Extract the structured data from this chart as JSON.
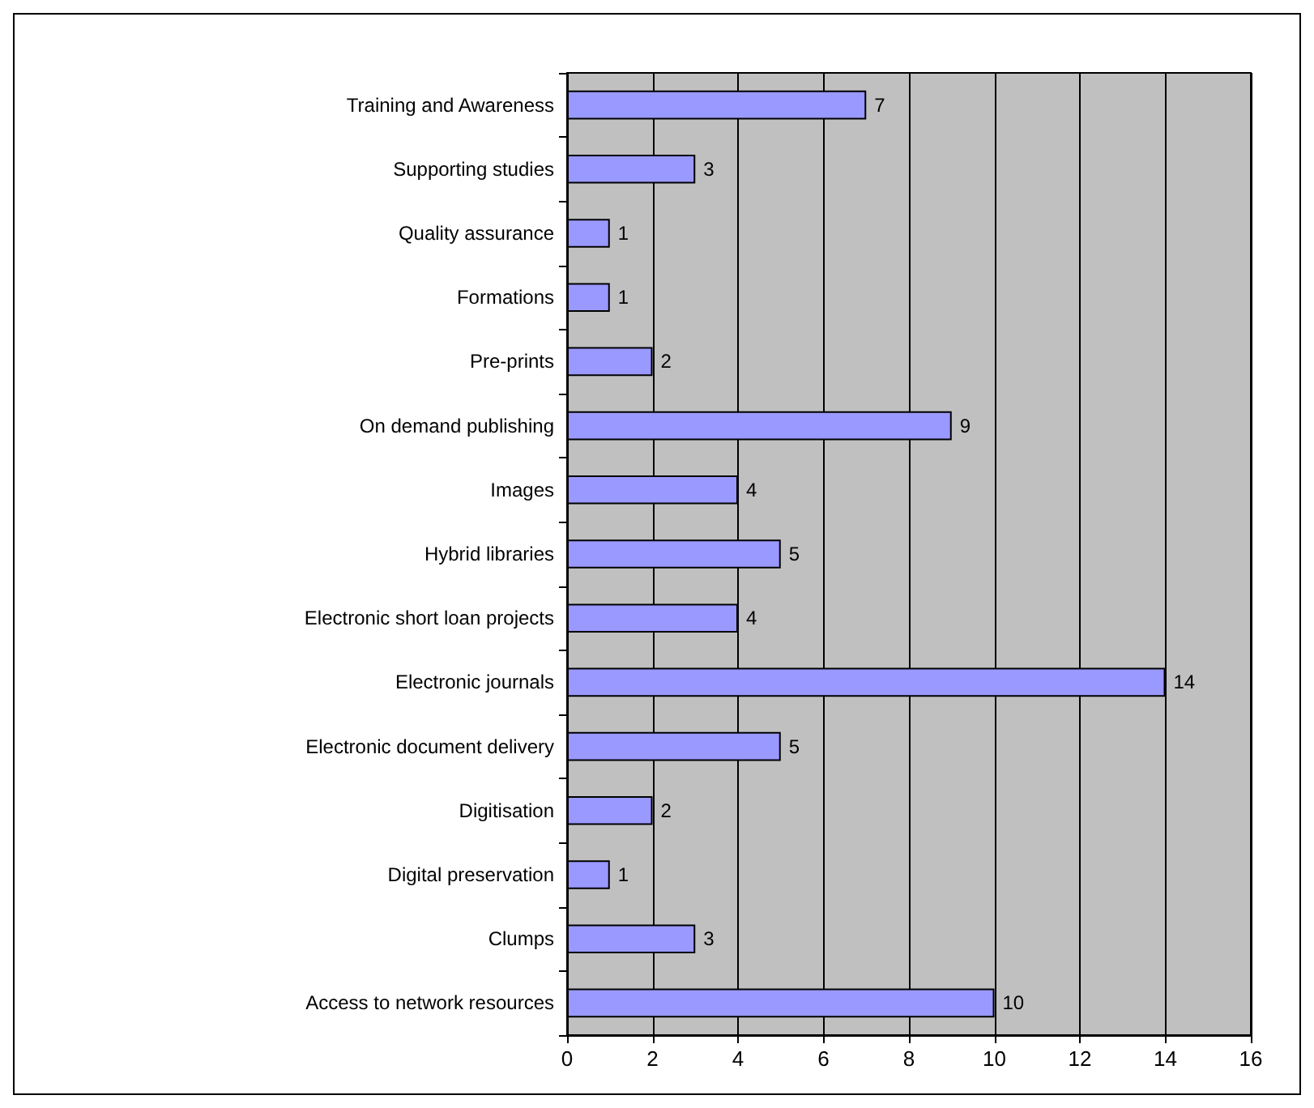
{
  "chart_data": {
    "type": "bar",
    "orientation": "horizontal",
    "categories": [
      "Training and Awareness",
      "Supporting studies",
      "Quality assurance",
      "Formations",
      "Pre-prints",
      "On demand publishing",
      "Images",
      "Hybrid libraries",
      "Electronic short loan projects",
      "Electronic journals",
      "Electronic document delivery",
      "Digitisation",
      "Digital preservation",
      "Clumps",
      "Access to network resources"
    ],
    "values": [
      7,
      3,
      1,
      1,
      2,
      9,
      4,
      5,
      4,
      14,
      5,
      2,
      1,
      3,
      10
    ],
    "color": "#9999ff",
    "xlim": [
      0,
      16
    ],
    "xticks": [
      0,
      2,
      4,
      6,
      8,
      10,
      12,
      14,
      16
    ],
    "grid": "x",
    "data_labels": true
  }
}
